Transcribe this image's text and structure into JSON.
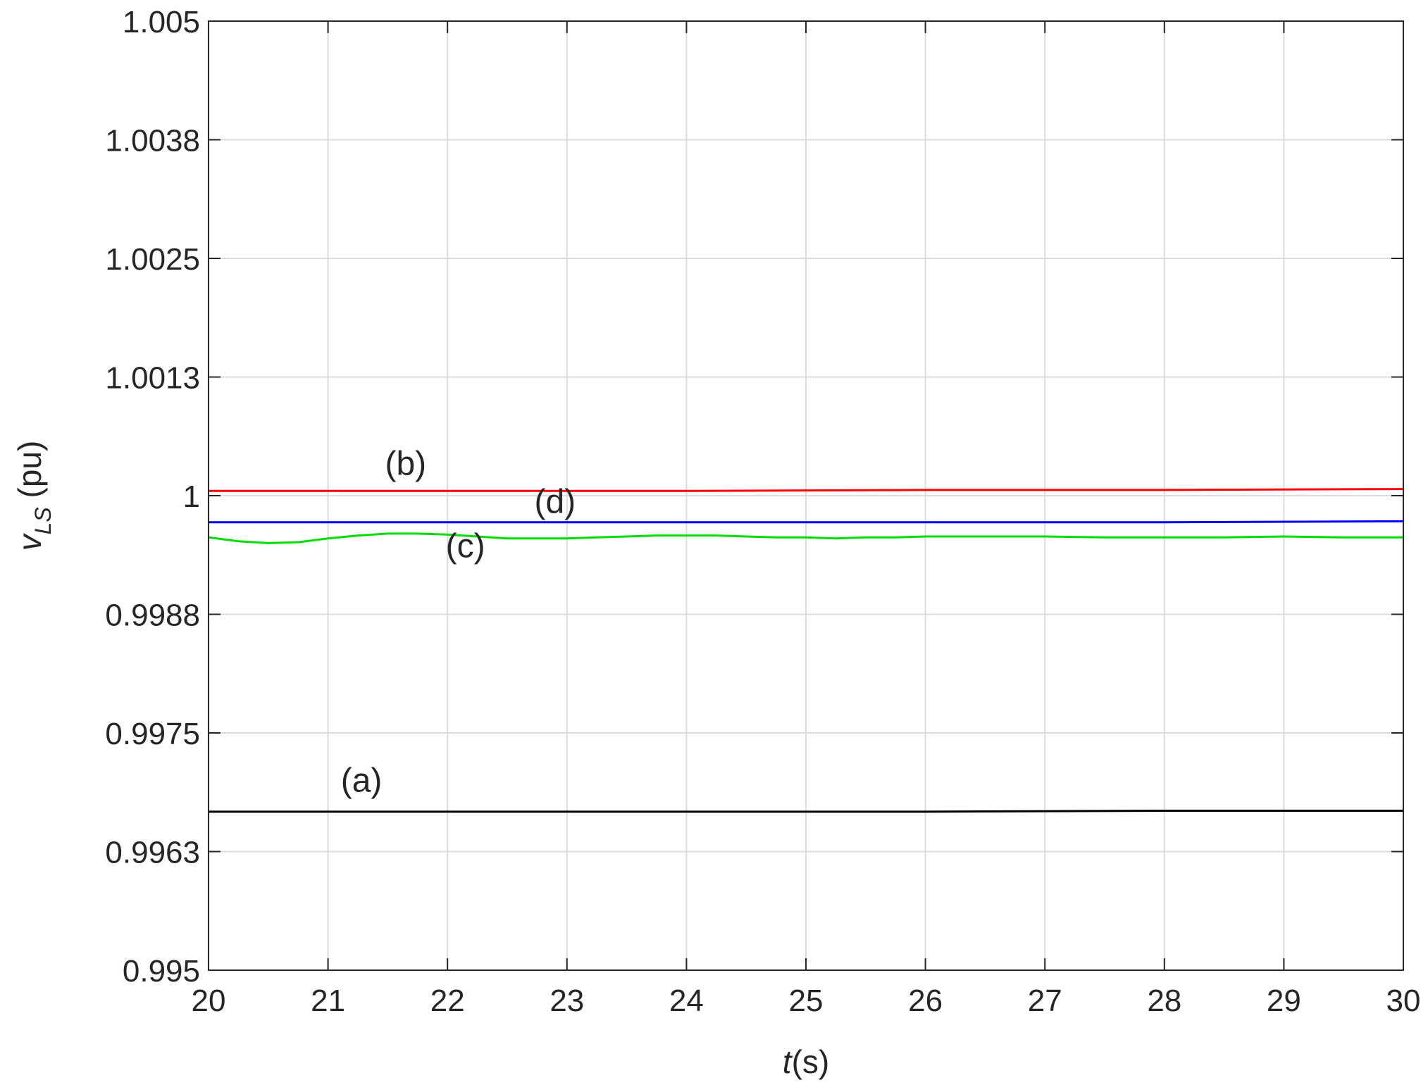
{
  "chart_data": {
    "type": "line",
    "title": "",
    "xlabel": {
      "italic": "t",
      "rest": "(s)"
    },
    "ylabel": {
      "base": "v",
      "subscript": "LS",
      "unit": " (pu)"
    },
    "xlim": [
      20,
      30
    ],
    "ylim": [
      0.995,
      1.005
    ],
    "xticks": [
      20,
      21,
      22,
      23,
      24,
      25,
      26,
      27,
      28,
      29,
      30
    ],
    "xtick_labels": [
      "20",
      "21",
      "22",
      "23",
      "24",
      "25",
      "26",
      "27",
      "28",
      "29",
      "30"
    ],
    "yticks": [
      0.995,
      0.99625,
      0.9975,
      0.99875,
      1.0,
      1.00125,
      1.0025,
      1.00375,
      1.005
    ],
    "ytick_labels": [
      "0.995",
      "0.9963",
      "0.9975",
      "0.9988",
      "1",
      "1.0013",
      "1.0025",
      "1.0038",
      "1.005"
    ],
    "grid": true,
    "series": [
      {
        "color": "#000000",
        "x": [
          20,
          22,
          24,
          26,
          28,
          30
        ],
        "y": [
          0.99667,
          0.99667,
          0.99667,
          0.99667,
          0.99668,
          0.99668
        ]
      },
      {
        "color": "#ff0000",
        "x": [
          20,
          22,
          24,
          26,
          28,
          30
        ],
        "y": [
          1.00005,
          1.00005,
          1.00005,
          1.00006,
          1.00006,
          1.00007
        ]
      },
      {
        "color": "#00dd00",
        "x": [
          20,
          20.25,
          20.5,
          20.75,
          21,
          21.25,
          21.5,
          21.75,
          22,
          22.25,
          22.5,
          22.75,
          23,
          23.25,
          23.5,
          23.75,
          24,
          24.25,
          24.5,
          24.75,
          25,
          25.25,
          25.5,
          25.75,
          26,
          26.5,
          27,
          27.5,
          28,
          28.5,
          29,
          29.5,
          30
        ],
        "y": [
          0.99956,
          0.99952,
          0.9995,
          0.99951,
          0.99955,
          0.99958,
          0.9996,
          0.9996,
          0.99959,
          0.99957,
          0.99955,
          0.99955,
          0.99955,
          0.99956,
          0.99957,
          0.99958,
          0.99958,
          0.99958,
          0.99957,
          0.99956,
          0.99956,
          0.99955,
          0.99956,
          0.99956,
          0.99957,
          0.99957,
          0.99957,
          0.99956,
          0.99956,
          0.99956,
          0.99957,
          0.99956,
          0.99956
        ]
      },
      {
        "color": "#0000ff",
        "x": [
          20,
          22,
          24,
          26,
          28,
          30
        ],
        "y": [
          0.99972,
          0.99972,
          0.99972,
          0.99972,
          0.99972,
          0.99973
        ]
      }
    ],
    "annotations": [
      {
        "text": "(a)",
        "x": 21.28,
        "y": 0.99688
      },
      {
        "text": "(b)",
        "x": 21.65,
        "y": 1.00022
      },
      {
        "text": "(c)",
        "x": 22.15,
        "y": 0.99935
      },
      {
        "text": "(d)",
        "x": 22.9,
        "y": 0.99982
      }
    ]
  }
}
